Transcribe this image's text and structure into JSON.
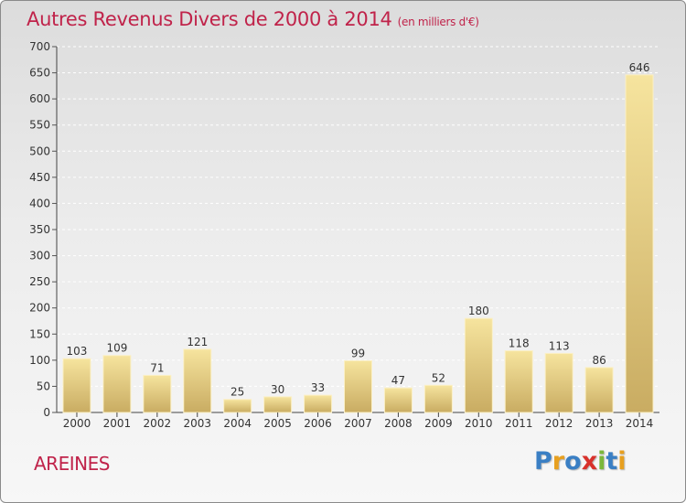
{
  "title": "Autres Revenus Divers de 2000 à 2014",
  "subtitle": "(en milliers d'€)",
  "place_name": "AREINES",
  "logo": {
    "letters": [
      "P",
      "r",
      "o",
      "x",
      "i",
      "t",
      "i"
    ],
    "colors": [
      "#3a7fc4",
      "#e7a020",
      "#3a7fc4",
      "#d8312b",
      "#7bb73a",
      "#3a7fc4",
      "#e7a020"
    ]
  },
  "colors": {
    "title": "#c0234a",
    "bar_top": "#f6e49e",
    "bar_bottom": "#c9ac62"
  },
  "chart_data": {
    "type": "bar",
    "title": "Autres Revenus Divers de 2000 à 2014",
    "subtitle": "(en milliers d'€)",
    "categories": [
      "2000",
      "2001",
      "2002",
      "2003",
      "2004",
      "2005",
      "2006",
      "2007",
      "2008",
      "2009",
      "2010",
      "2011",
      "2012",
      "2013",
      "2014"
    ],
    "values": [
      103,
      109,
      71,
      121,
      25,
      30,
      33,
      99,
      47,
      52,
      180,
      118,
      113,
      86,
      646
    ],
    "ylim": [
      0,
      700
    ],
    "yticks": [
      0,
      50,
      100,
      150,
      200,
      250,
      300,
      350,
      400,
      450,
      500,
      550,
      600,
      650,
      700
    ],
    "grid": true,
    "xlabel": "",
    "ylabel": ""
  }
}
